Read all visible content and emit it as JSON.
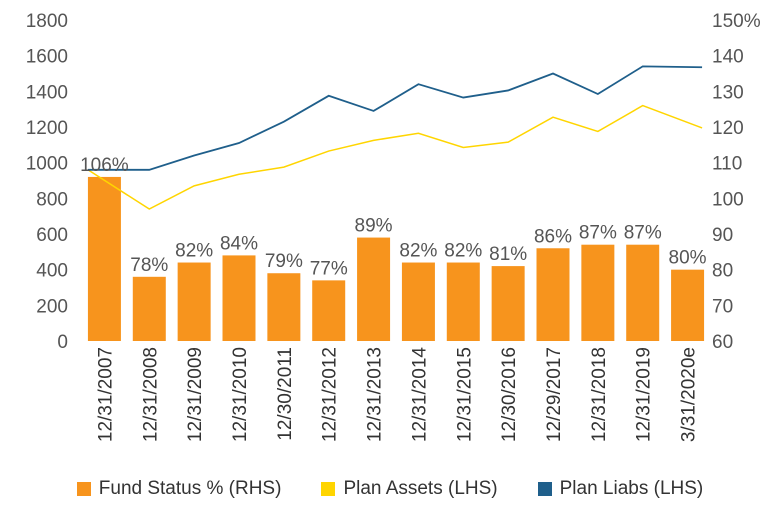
{
  "chart_data": {
    "type": "bar",
    "categories": [
      "12/31/2007",
      "12/31/2008",
      "12/31/2009",
      "12/31/2010",
      "12/30/2011",
      "12/31/2012",
      "12/31/2013",
      "12/31/2014",
      "12/31/2015",
      "12/30/2016",
      "12/29/2017",
      "12/31/2018",
      "12/31/2019",
      "3/31/2020e"
    ],
    "series": [
      {
        "name": "Fund Status % (RHS)",
        "type": "bar",
        "axis": "right",
        "color": "#F7941D",
        "values": [
          106,
          78,
          82,
          84,
          79,
          77,
          89,
          82,
          82,
          81,
          86,
          87,
          87,
          80
        ],
        "labels": [
          "106%",
          "78%",
          "82%",
          "84%",
          "79%",
          "77%",
          "89%",
          "82%",
          "82%",
          "81%",
          "86%",
          "87%",
          "87%",
          "80%"
        ]
      },
      {
        "name": "Plan Assets (LHS)",
        "type": "line",
        "axis": "left",
        "color": "#FFD500",
        "values": [
          960,
          740,
          870,
          935,
          975,
          1065,
          1125,
          1165,
          1085,
          1115,
          1255,
          1175,
          1320,
          1195
        ]
      },
      {
        "name": "Plan Liabs (LHS)",
        "type": "line",
        "axis": "left",
        "color": "#1F5F8B",
        "values": [
          960,
          960,
          1040,
          1110,
          1230,
          1375,
          1290,
          1440,
          1365,
          1405,
          1500,
          1385,
          1540,
          1535
        ]
      }
    ],
    "left_axis": {
      "ylim": [
        0,
        1800
      ],
      "ticks": [
        "0",
        "200",
        "400",
        "600",
        "800",
        "1000",
        "1200",
        "1400",
        "1600",
        "1800"
      ]
    },
    "right_axis": {
      "ylim": [
        60,
        150
      ],
      "ticks": [
        "60",
        "70",
        "80",
        "90",
        "100",
        "110",
        "120",
        "130",
        "140",
        "150%"
      ]
    },
    "legend": {
      "position": "bottom"
    }
  }
}
